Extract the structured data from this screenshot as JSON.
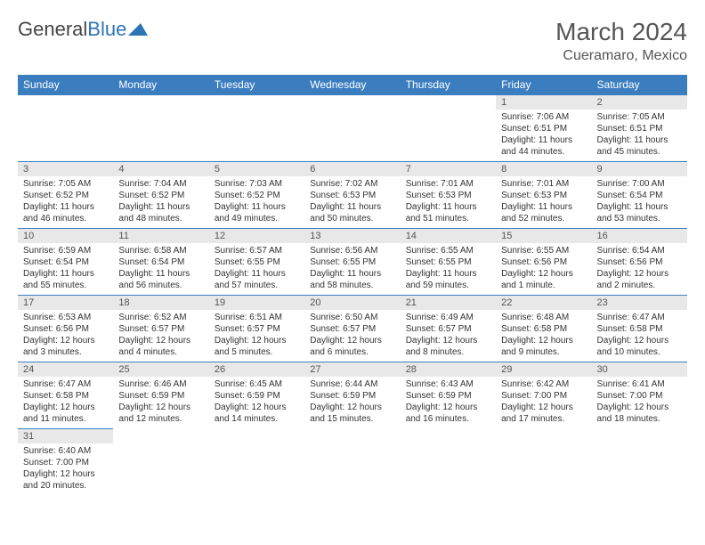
{
  "logo": {
    "part1": "General",
    "part2": "Blue"
  },
  "title": "March 2024",
  "location": "Cueramaro, Mexico",
  "colors": {
    "header_bg": "#3b7ec0",
    "header_text": "#ffffff",
    "daynum_bg": "#e8e8e8",
    "border": "#3b7ec0",
    "logo_blue": "#2e74b5"
  },
  "day_headers": [
    "Sunday",
    "Monday",
    "Tuesday",
    "Wednesday",
    "Thursday",
    "Friday",
    "Saturday"
  ],
  "weeks": [
    [
      null,
      null,
      null,
      null,
      null,
      {
        "n": "1",
        "sr": "Sunrise: 7:06 AM",
        "ss": "Sunset: 6:51 PM",
        "dl": "Daylight: 11 hours and 44 minutes."
      },
      {
        "n": "2",
        "sr": "Sunrise: 7:05 AM",
        "ss": "Sunset: 6:51 PM",
        "dl": "Daylight: 11 hours and 45 minutes."
      }
    ],
    [
      {
        "n": "3",
        "sr": "Sunrise: 7:05 AM",
        "ss": "Sunset: 6:52 PM",
        "dl": "Daylight: 11 hours and 46 minutes."
      },
      {
        "n": "4",
        "sr": "Sunrise: 7:04 AM",
        "ss": "Sunset: 6:52 PM",
        "dl": "Daylight: 11 hours and 48 minutes."
      },
      {
        "n": "5",
        "sr": "Sunrise: 7:03 AM",
        "ss": "Sunset: 6:52 PM",
        "dl": "Daylight: 11 hours and 49 minutes."
      },
      {
        "n": "6",
        "sr": "Sunrise: 7:02 AM",
        "ss": "Sunset: 6:53 PM",
        "dl": "Daylight: 11 hours and 50 minutes."
      },
      {
        "n": "7",
        "sr": "Sunrise: 7:01 AM",
        "ss": "Sunset: 6:53 PM",
        "dl": "Daylight: 11 hours and 51 minutes."
      },
      {
        "n": "8",
        "sr": "Sunrise: 7:01 AM",
        "ss": "Sunset: 6:53 PM",
        "dl": "Daylight: 11 hours and 52 minutes."
      },
      {
        "n": "9",
        "sr": "Sunrise: 7:00 AM",
        "ss": "Sunset: 6:54 PM",
        "dl": "Daylight: 11 hours and 53 minutes."
      }
    ],
    [
      {
        "n": "10",
        "sr": "Sunrise: 6:59 AM",
        "ss": "Sunset: 6:54 PM",
        "dl": "Daylight: 11 hours and 55 minutes."
      },
      {
        "n": "11",
        "sr": "Sunrise: 6:58 AM",
        "ss": "Sunset: 6:54 PM",
        "dl": "Daylight: 11 hours and 56 minutes."
      },
      {
        "n": "12",
        "sr": "Sunrise: 6:57 AM",
        "ss": "Sunset: 6:55 PM",
        "dl": "Daylight: 11 hours and 57 minutes."
      },
      {
        "n": "13",
        "sr": "Sunrise: 6:56 AM",
        "ss": "Sunset: 6:55 PM",
        "dl": "Daylight: 11 hours and 58 minutes."
      },
      {
        "n": "14",
        "sr": "Sunrise: 6:55 AM",
        "ss": "Sunset: 6:55 PM",
        "dl": "Daylight: 11 hours and 59 minutes."
      },
      {
        "n": "15",
        "sr": "Sunrise: 6:55 AM",
        "ss": "Sunset: 6:56 PM",
        "dl": "Daylight: 12 hours and 1 minute."
      },
      {
        "n": "16",
        "sr": "Sunrise: 6:54 AM",
        "ss": "Sunset: 6:56 PM",
        "dl": "Daylight: 12 hours and 2 minutes."
      }
    ],
    [
      {
        "n": "17",
        "sr": "Sunrise: 6:53 AM",
        "ss": "Sunset: 6:56 PM",
        "dl": "Daylight: 12 hours and 3 minutes."
      },
      {
        "n": "18",
        "sr": "Sunrise: 6:52 AM",
        "ss": "Sunset: 6:57 PM",
        "dl": "Daylight: 12 hours and 4 minutes."
      },
      {
        "n": "19",
        "sr": "Sunrise: 6:51 AM",
        "ss": "Sunset: 6:57 PM",
        "dl": "Daylight: 12 hours and 5 minutes."
      },
      {
        "n": "20",
        "sr": "Sunrise: 6:50 AM",
        "ss": "Sunset: 6:57 PM",
        "dl": "Daylight: 12 hours and 6 minutes."
      },
      {
        "n": "21",
        "sr": "Sunrise: 6:49 AM",
        "ss": "Sunset: 6:57 PM",
        "dl": "Daylight: 12 hours and 8 minutes."
      },
      {
        "n": "22",
        "sr": "Sunrise: 6:48 AM",
        "ss": "Sunset: 6:58 PM",
        "dl": "Daylight: 12 hours and 9 minutes."
      },
      {
        "n": "23",
        "sr": "Sunrise: 6:47 AM",
        "ss": "Sunset: 6:58 PM",
        "dl": "Daylight: 12 hours and 10 minutes."
      }
    ],
    [
      {
        "n": "24",
        "sr": "Sunrise: 6:47 AM",
        "ss": "Sunset: 6:58 PM",
        "dl": "Daylight: 12 hours and 11 minutes."
      },
      {
        "n": "25",
        "sr": "Sunrise: 6:46 AM",
        "ss": "Sunset: 6:59 PM",
        "dl": "Daylight: 12 hours and 12 minutes."
      },
      {
        "n": "26",
        "sr": "Sunrise: 6:45 AM",
        "ss": "Sunset: 6:59 PM",
        "dl": "Daylight: 12 hours and 14 minutes."
      },
      {
        "n": "27",
        "sr": "Sunrise: 6:44 AM",
        "ss": "Sunset: 6:59 PM",
        "dl": "Daylight: 12 hours and 15 minutes."
      },
      {
        "n": "28",
        "sr": "Sunrise: 6:43 AM",
        "ss": "Sunset: 6:59 PM",
        "dl": "Daylight: 12 hours and 16 minutes."
      },
      {
        "n": "29",
        "sr": "Sunrise: 6:42 AM",
        "ss": "Sunset: 7:00 PM",
        "dl": "Daylight: 12 hours and 17 minutes."
      },
      {
        "n": "30",
        "sr": "Sunrise: 6:41 AM",
        "ss": "Sunset: 7:00 PM",
        "dl": "Daylight: 12 hours and 18 minutes."
      }
    ],
    [
      {
        "n": "31",
        "sr": "Sunrise: 6:40 AM",
        "ss": "Sunset: 7:00 PM",
        "dl": "Daylight: 12 hours and 20 minutes."
      },
      null,
      null,
      null,
      null,
      null,
      null
    ]
  ]
}
